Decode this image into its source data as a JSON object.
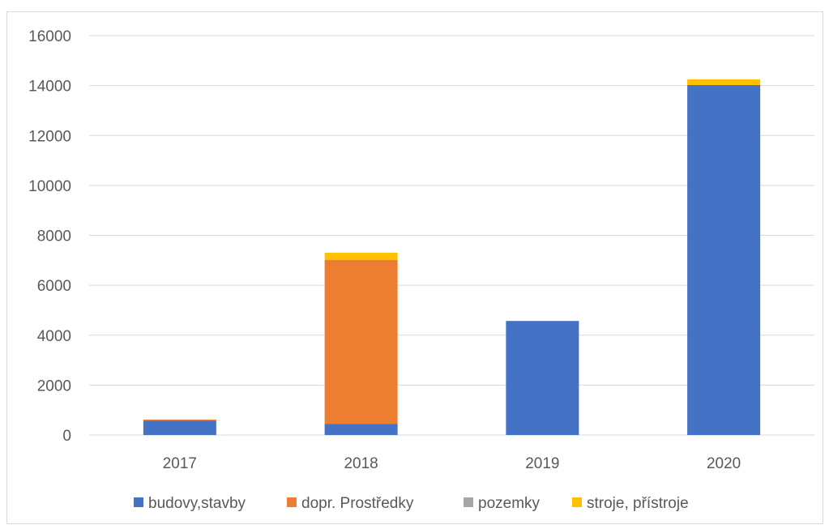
{
  "chart_data": {
    "type": "bar",
    "stacked": true,
    "title": "",
    "xlabel": "",
    "ylabel": "",
    "categories": [
      "2017",
      "2018",
      "2019",
      "2020"
    ],
    "ylim": [
      0,
      16000
    ],
    "yticks": [
      0,
      2000,
      4000,
      6000,
      8000,
      10000,
      12000,
      14000,
      16000
    ],
    "grid": true,
    "legend_position": "bottom",
    "series": [
      {
        "name": "budovy,stavby",
        "color": "#4472c4",
        "values": [
          580,
          450,
          4570,
          14020
        ]
      },
      {
        "name": "dopr. Prostředky",
        "color": "#ed7d31",
        "values": [
          40,
          6570,
          0,
          0
        ]
      },
      {
        "name": "pozemky",
        "color": "#a5a5a5",
        "values": [
          0,
          0,
          0,
          0
        ]
      },
      {
        "name": "stroje, přístroje",
        "color": "#ffc000",
        "values": [
          0,
          280,
          0,
          230
        ]
      }
    ]
  }
}
